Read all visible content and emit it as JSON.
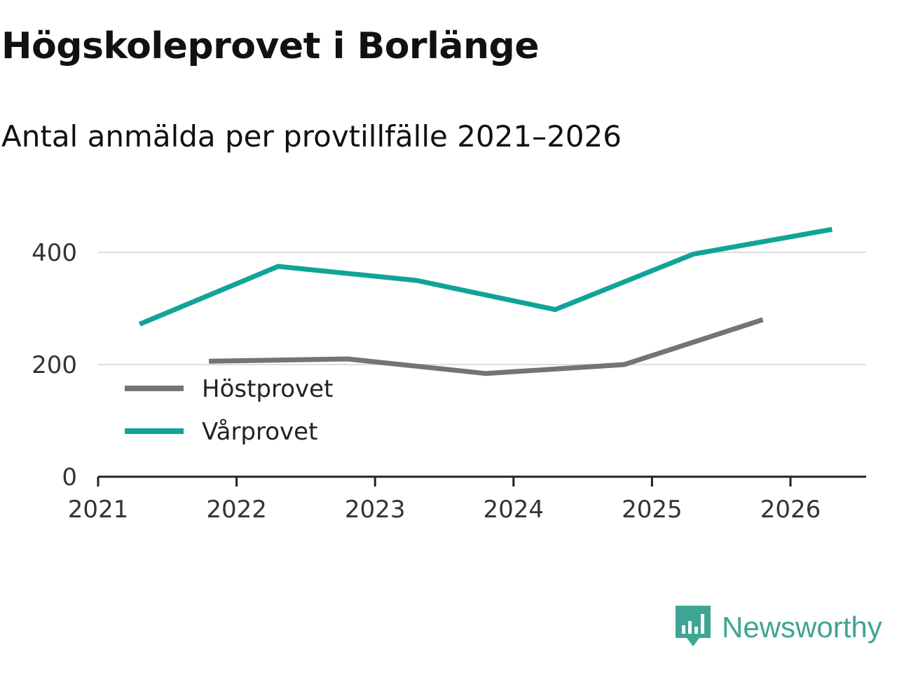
{
  "title": "Högskoleprovet i Borlänge",
  "subtitle": "Antal anmälda per provtillfälle 2021–2026",
  "brand": {
    "name": "Newsworthy",
    "icon": "bar-chart-bubble-icon",
    "color": "#3ea595"
  },
  "chart_data": {
    "type": "line",
    "title": "Högskoleprovet i Borlänge",
    "subtitle": "Antal anmälda per provtillfälle 2021–2026",
    "xlabel": "",
    "ylabel": "",
    "xlim": [
      2021,
      2026.5
    ],
    "ylim": [
      0,
      400
    ],
    "y_ticks": [
      0,
      200,
      400
    ],
    "x_ticks": [
      "2021",
      "2022",
      "2023",
      "2024",
      "2025",
      "2026"
    ],
    "grid": "horizontal",
    "legend_position": "lower-left",
    "series": [
      {
        "name": "Höstprovet",
        "color": "#747378",
        "x": [
          2021.8,
          2022.8,
          2023.8,
          2024.8,
          2025.8
        ],
        "values": [
          206,
          210,
          184,
          200,
          280
        ]
      },
      {
        "name": "Vårprovet",
        "color": "#11a397",
        "x": [
          2021.3,
          2022.3,
          2023.3,
          2024.3,
          2025.3,
          2026.3
        ],
        "values": [
          272,
          375,
          350,
          298,
          397,
          441
        ]
      }
    ]
  }
}
